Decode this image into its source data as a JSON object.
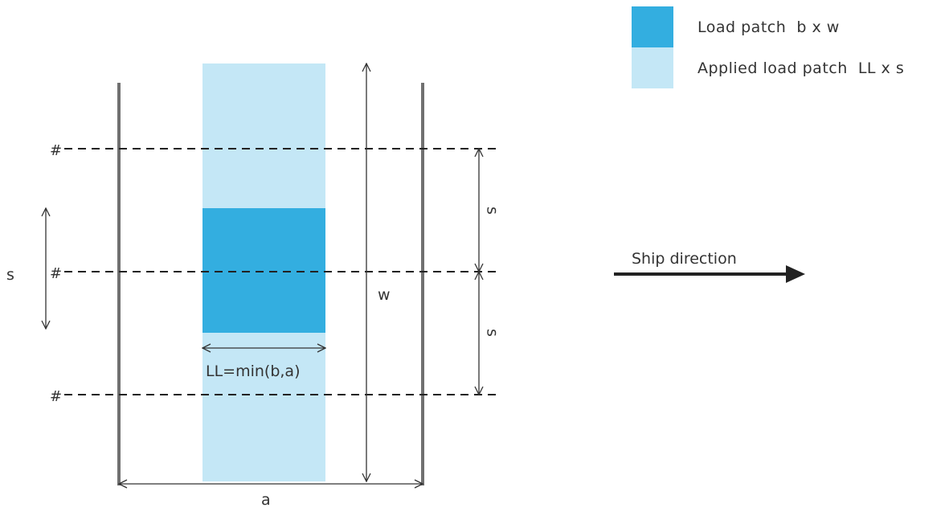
{
  "legend": [
    {
      "label": "Load patch  b x w",
      "color": "#33aee0"
    },
    {
      "label": "Applied load patch  LL x s",
      "color": "#c4e7f6"
    }
  ],
  "labels": {
    "frame_mark": "#",
    "spacing": "s",
    "height": "w",
    "width": "a",
    "load_length": "LL=min(b,a)",
    "ship_direction": "Ship direction"
  },
  "colors": {
    "load_patch": "#33aee0",
    "applied_patch": "#c4e7f6",
    "stiffener": "#707070",
    "frame_line": "#222222"
  }
}
